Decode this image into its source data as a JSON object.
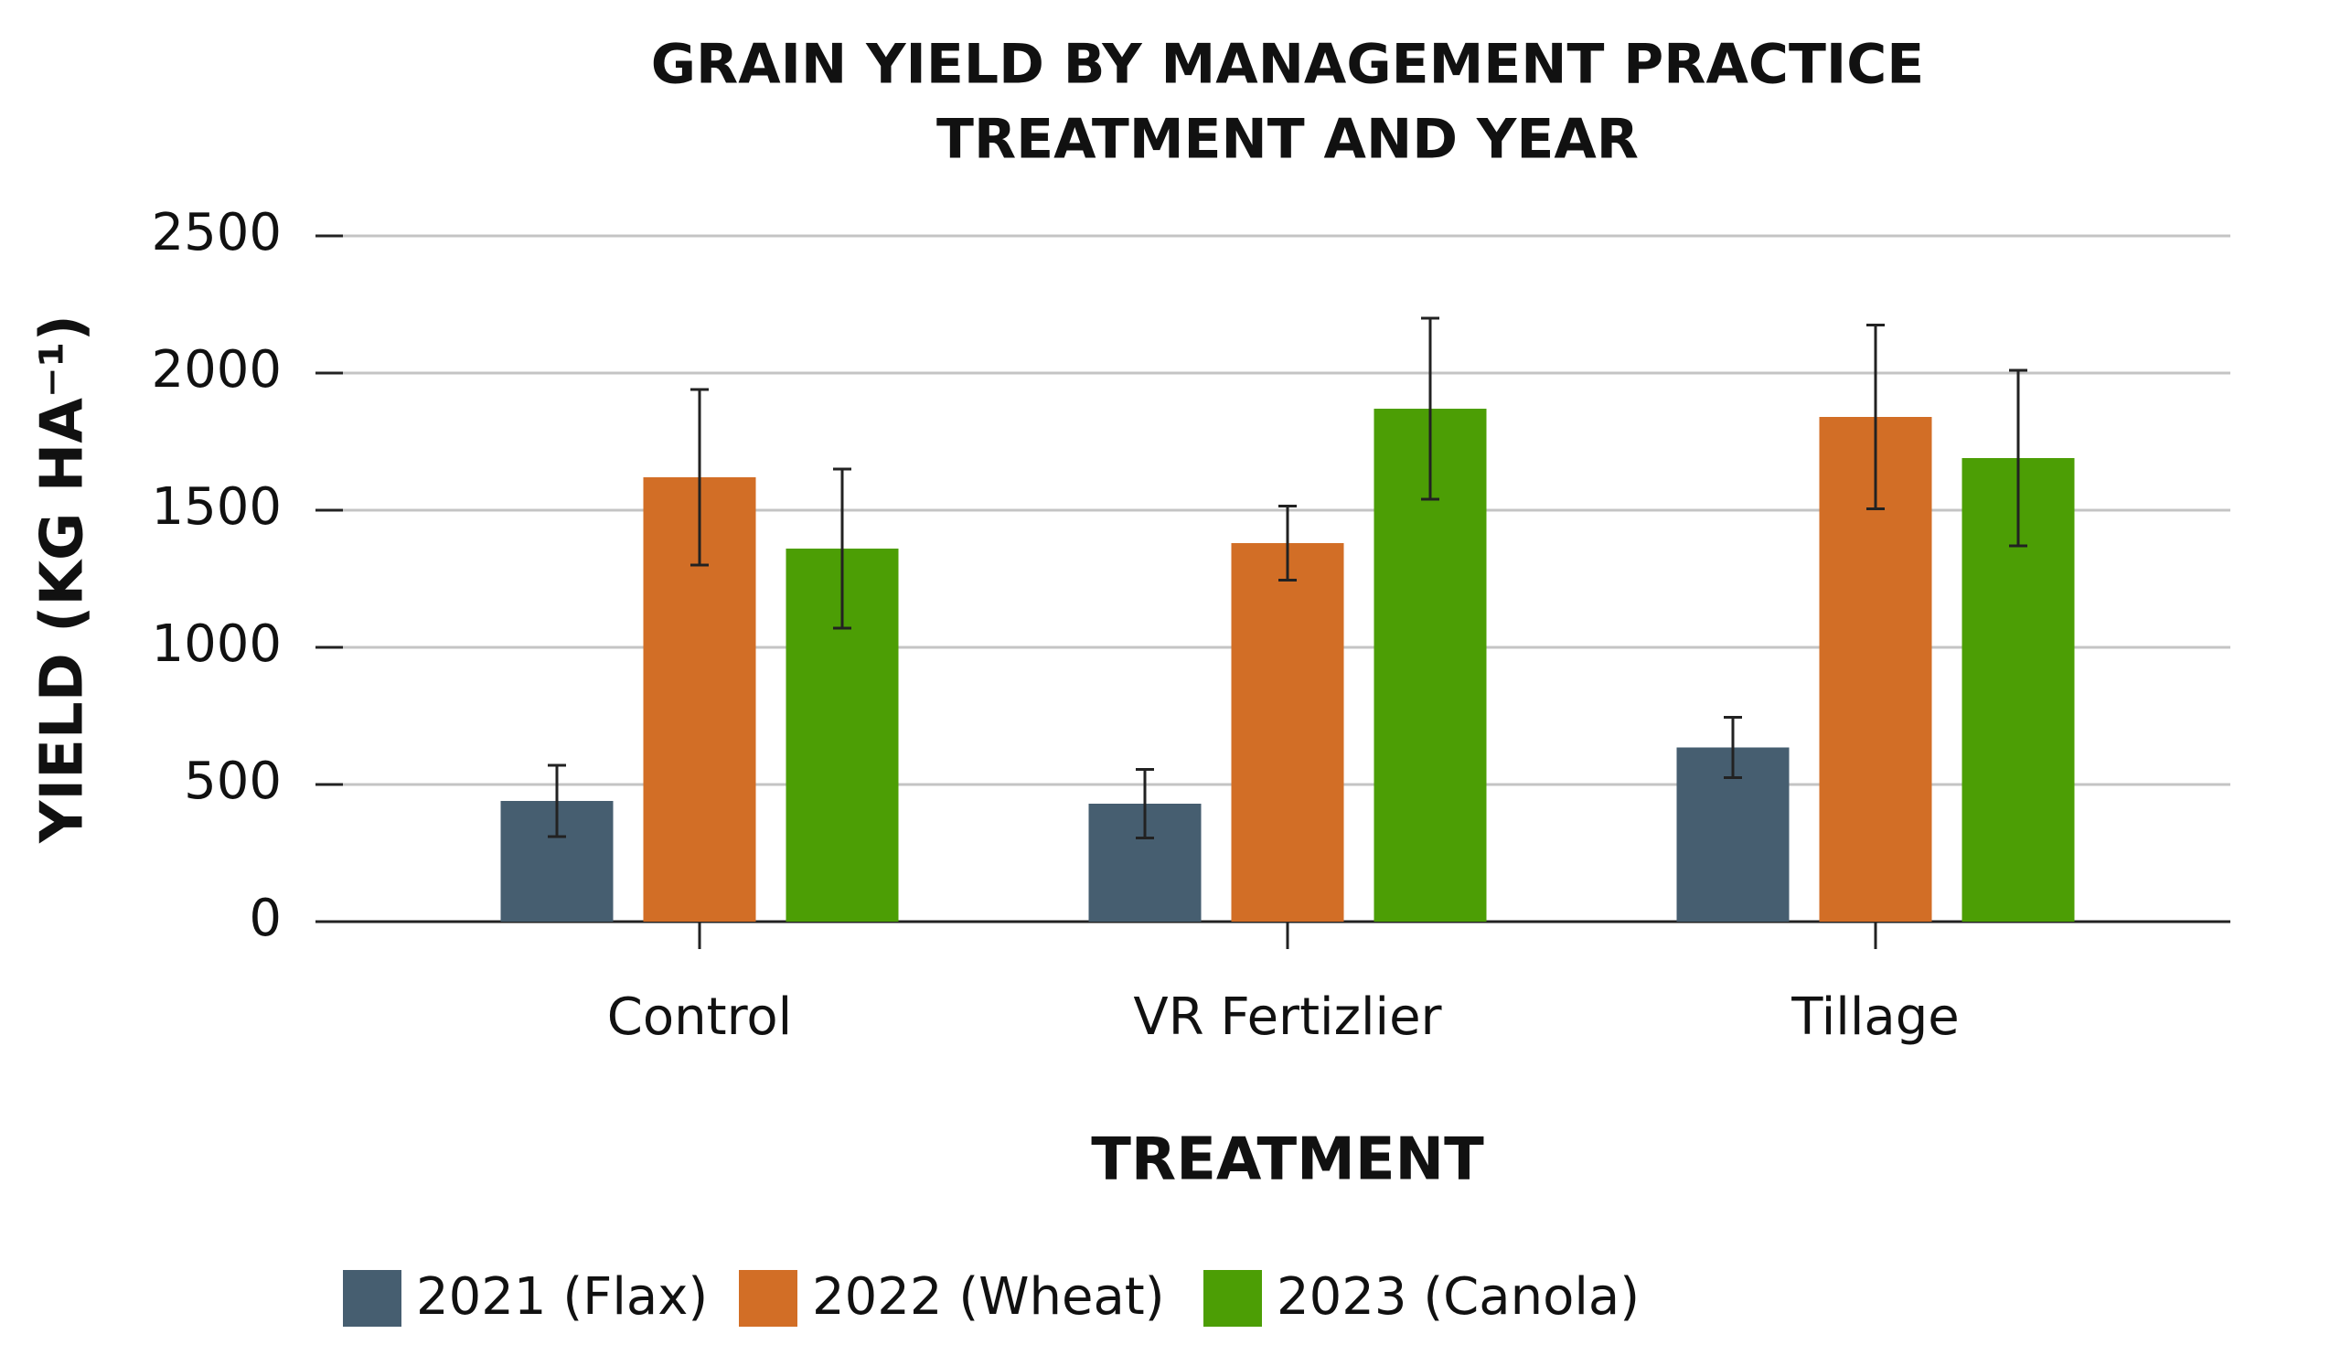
{
  "chart_data": {
    "type": "bar",
    "title": [
      "GRAIN YIELD BY MANAGEMENT PRACTICE",
      "TREATMENT AND YEAR"
    ],
    "x_label": "TREATMENT",
    "y_label": "YIELD (KG HA⁻¹)",
    "categories": [
      "Control",
      "VR Fertizlier",
      "Tillage"
    ],
    "series": [
      {
        "name": "2021 (Flax)",
        "color": "#465e70",
        "values": [
          440,
          430,
          635
        ],
        "errors": [
          130,
          125,
          110
        ]
      },
      {
        "name": "2022 (Wheat)",
        "color": "#d26e26",
        "values": [
          1620,
          1380,
          1840
        ],
        "errors": [
          320,
          135,
          335
        ]
      },
      {
        "name": "2023 (Canola)",
        "color": "#4c9e05",
        "values": [
          1360,
          1870,
          1690
        ],
        "errors": [
          290,
          330,
          320
        ]
      }
    ],
    "ylim": [
      0,
      2500
    ],
    "yticks": [
      0,
      500,
      1000,
      1500,
      2000,
      2500
    ],
    "grid": true,
    "legend": "bottom"
  }
}
